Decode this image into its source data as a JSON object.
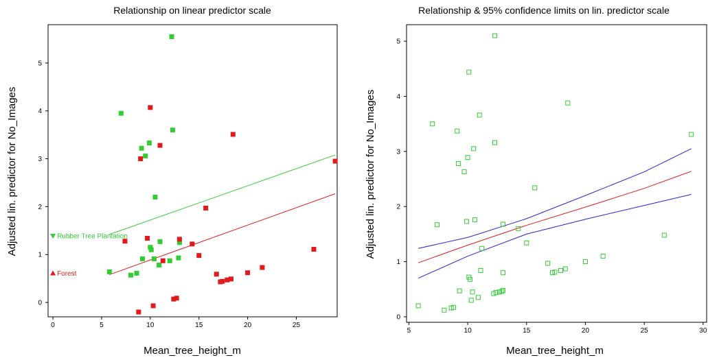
{
  "chart_data": [
    {
      "type": "scatter",
      "title": "Relationship on linear predictor scale",
      "xlabel": "Mean_tree_height_m",
      "ylabel": "Adjusted lin. predictor for No_Images",
      "xlim": [
        -0.5,
        29.2
      ],
      "ylim": [
        -0.3,
        5.8
      ],
      "x_ticks": [
        0,
        5,
        10,
        15,
        20,
        25
      ],
      "y_ticks": [
        0,
        1,
        2,
        3,
        4,
        5
      ],
      "grid": false,
      "legend": [
        {
          "label": "Rubber Tree Plantation",
          "symbol": "triangle-down",
          "color": "#33cc33",
          "position": {
            "x": 0,
            "y": 1.39
          }
        },
        {
          "label": "Forest",
          "symbol": "triangle-up",
          "color": "#e31a1c",
          "position": {
            "x": 0,
            "y": 0.61
          }
        }
      ],
      "series": [
        {
          "name": "Rubber Tree Plantation",
          "color": "#33cc33",
          "marker": "filled-square",
          "points": [
            [
              5.8,
              0.64
            ],
            [
              7.0,
              3.95
            ],
            [
              8.0,
              0.57
            ],
            [
              8.6,
              0.61
            ],
            [
              9.1,
              3.22
            ],
            [
              9.2,
              0.91
            ],
            [
              9.5,
              3.06
            ],
            [
              9.9,
              3.33
            ],
            [
              10.0,
              1.15
            ],
            [
              10.1,
              1.1
            ],
            [
              10.4,
              0.91
            ],
            [
              10.5,
              2.2
            ],
            [
              10.9,
              0.78
            ],
            [
              11.0,
              1.27
            ],
            [
              12.0,
              0.87
            ],
            [
              12.2,
              5.55
            ],
            [
              12.3,
              3.6
            ],
            [
              12.9,
              0.93
            ],
            [
              13.0,
              1.25
            ]
          ],
          "fit_line": [
            [
              5.8,
              1.42
            ],
            [
              29.0,
              3.08
            ]
          ]
        },
        {
          "name": "Forest",
          "color": "#e31a1c",
          "marker": "filled-square",
          "points": [
            [
              7.4,
              1.28
            ],
            [
              8.8,
              -0.2
            ],
            [
              9.0,
              3.0
            ],
            [
              9.7,
              1.34
            ],
            [
              10.0,
              4.07
            ],
            [
              10.3,
              -0.07
            ],
            [
              11.0,
              3.28
            ],
            [
              11.3,
              0.87
            ],
            [
              12.4,
              0.07
            ],
            [
              12.7,
              0.09
            ],
            [
              13.0,
              1.32
            ],
            [
              14.3,
              1.22
            ],
            [
              15.0,
              0.98
            ],
            [
              15.7,
              1.97
            ],
            [
              16.8,
              0.59
            ],
            [
              17.2,
              0.43
            ],
            [
              17.4,
              0.44
            ],
            [
              17.9,
              0.47
            ],
            [
              18.3,
              0.49
            ],
            [
              18.5,
              3.51
            ],
            [
              20.0,
              0.62
            ],
            [
              21.5,
              0.73
            ],
            [
              26.8,
              1.11
            ],
            [
              29.0,
              2.95
            ]
          ],
          "fit_line": [
            [
              5.8,
              0.58
            ],
            [
              29.0,
              2.27
            ]
          ]
        }
      ]
    },
    {
      "type": "scatter",
      "title": "Relationship & 95% confidence limits on lin. predictor scale",
      "xlabel": "Mean_tree_height_m",
      "ylabel": "Adjusted lin. predictor for No_Images",
      "xlim": [
        4.8,
        30.3
      ],
      "ylim": [
        -0.1,
        5.3
      ],
      "x_ticks": [
        5,
        10,
        15,
        20,
        25,
        30
      ],
      "y_ticks": [
        0,
        1,
        2,
        3,
        4,
        5
      ],
      "grid": false,
      "series": [
        {
          "name": "",
          "color": "#33cc33",
          "marker": "open-square",
          "points": [
            [
              5.8,
              0.2
            ],
            [
              7.0,
              3.5
            ],
            [
              7.4,
              1.67
            ],
            [
              8.0,
              0.12
            ],
            [
              8.6,
              0.16
            ],
            [
              8.8,
              0.17
            ],
            [
              9.1,
              3.37
            ],
            [
              9.2,
              2.78
            ],
            [
              9.3,
              0.47
            ],
            [
              9.7,
              2.63
            ],
            [
              9.9,
              1.73
            ],
            [
              10.0,
              2.89
            ],
            [
              10.1,
              4.44
            ],
            [
              10.1,
              0.72
            ],
            [
              10.2,
              0.68
            ],
            [
              10.3,
              0.3
            ],
            [
              10.4,
              0.45
            ],
            [
              10.5,
              3.05
            ],
            [
              10.6,
              1.76
            ],
            [
              10.9,
              0.35
            ],
            [
              11.0,
              3.66
            ],
            [
              11.1,
              0.84
            ],
            [
              11.2,
              1.24
            ],
            [
              12.2,
              0.42
            ],
            [
              12.3,
              5.1
            ],
            [
              12.3,
              3.16
            ],
            [
              12.4,
              0.44
            ],
            [
              12.7,
              0.45
            ],
            [
              12.9,
              0.46
            ],
            [
              13.0,
              0.48
            ],
            [
              13.0,
              1.68
            ],
            [
              13.0,
              0.8
            ],
            [
              14.3,
              1.6
            ],
            [
              15.0,
              1.34
            ],
            [
              15.7,
              2.34
            ],
            [
              16.8,
              0.97
            ],
            [
              17.2,
              0.8
            ],
            [
              17.4,
              0.81
            ],
            [
              17.9,
              0.84
            ],
            [
              18.3,
              0.87
            ],
            [
              18.5,
              3.88
            ],
            [
              20.0,
              1.0
            ],
            [
              21.5,
              1.1
            ],
            [
              26.7,
              1.48
            ],
            [
              29.0,
              3.31
            ]
          ]
        }
      ],
      "lines": [
        {
          "name": "",
          "color": "#e31a1c",
          "points": [
            [
              5.8,
              0.98
            ],
            [
              10,
              1.3
            ],
            [
              15,
              1.66
            ],
            [
              20,
              1.99
            ],
            [
              25,
              2.33
            ],
            [
              29.0,
              2.64
            ]
          ]
        },
        {
          "name": "",
          "color": "#2424d6",
          "points": [
            [
              5.8,
              1.24
            ],
            [
              10,
              1.44
            ],
            [
              15,
              1.78
            ],
            [
              20,
              2.2
            ],
            [
              25,
              2.63
            ],
            [
              29.0,
              3.05
            ]
          ]
        },
        {
          "name": "",
          "color": "#2424d6",
          "points": [
            [
              5.8,
              0.7
            ],
            [
              10,
              1.1
            ],
            [
              15,
              1.5
            ],
            [
              20,
              1.77
            ],
            [
              25,
              2.02
            ],
            [
              29.0,
              2.22
            ]
          ]
        }
      ]
    }
  ]
}
